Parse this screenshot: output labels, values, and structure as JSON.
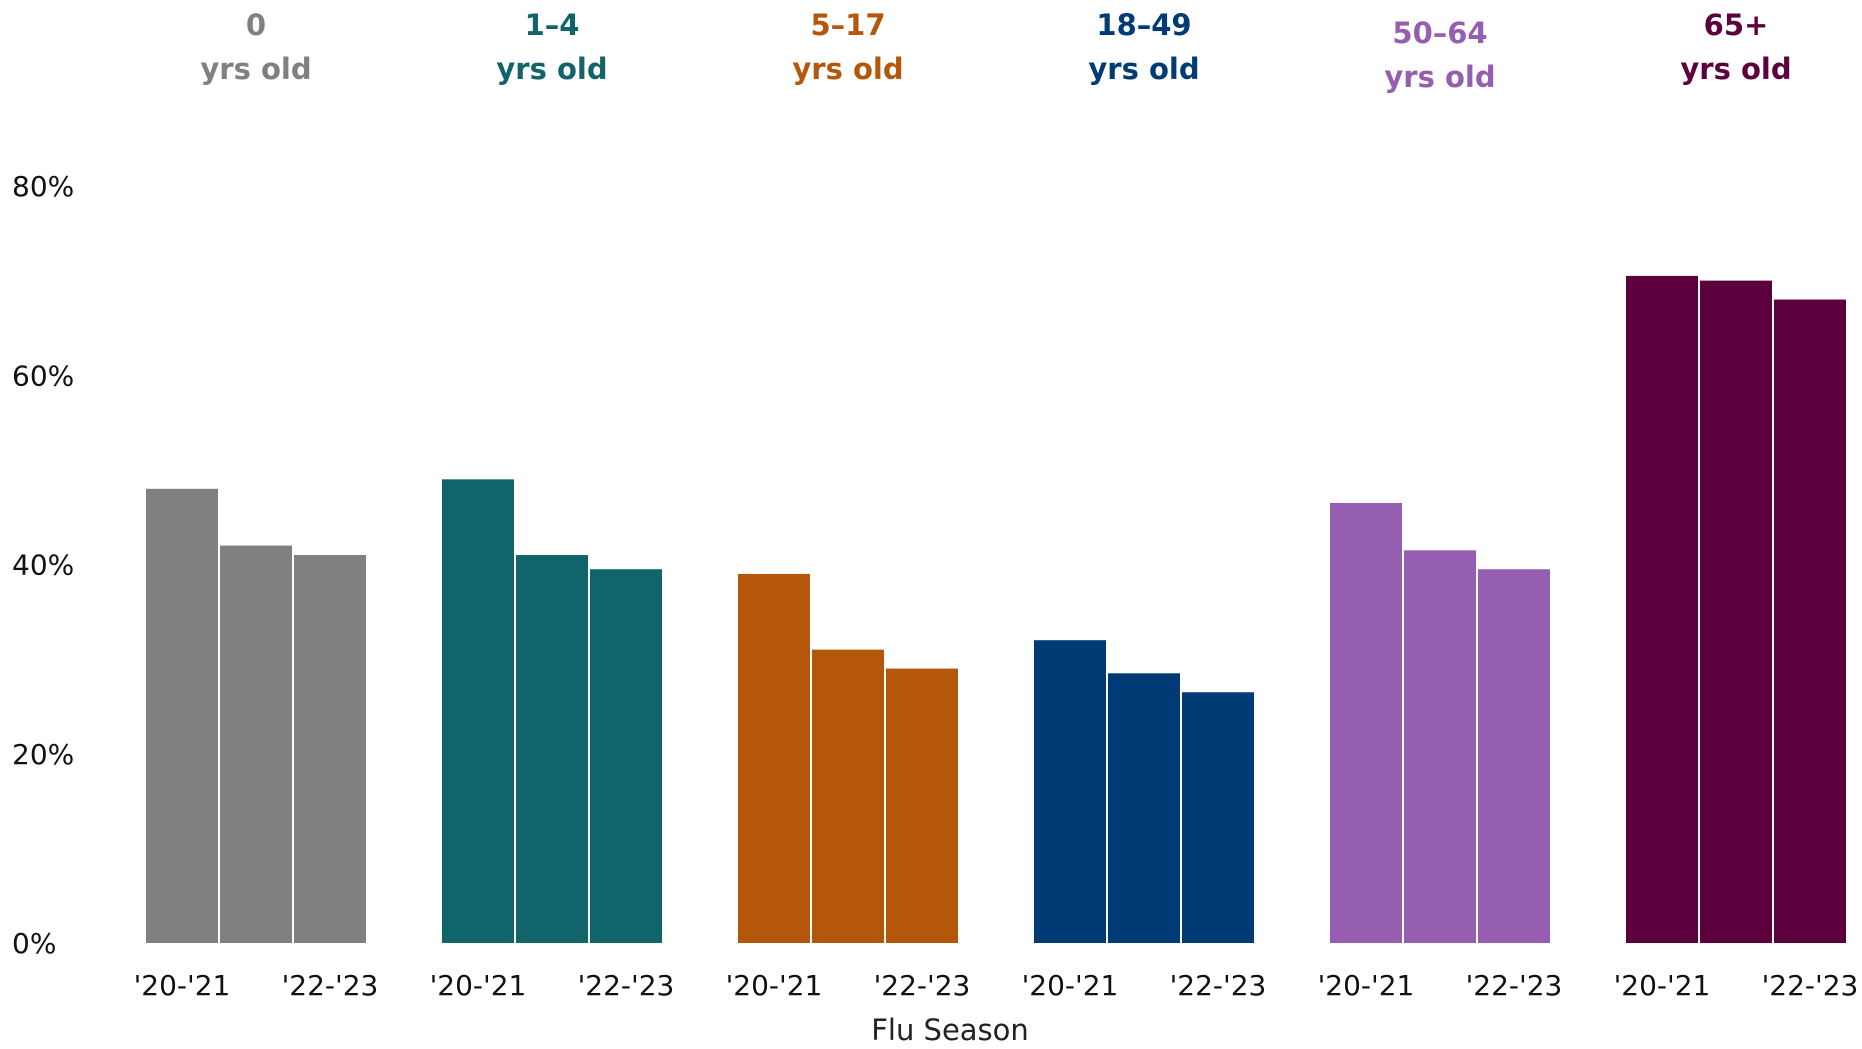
{
  "chart_data": {
    "type": "bar",
    "xlabel": "Flu Season",
    "ylabel": "",
    "ylim": [
      0,
      80
    ],
    "yticks": [
      "0%",
      "20%",
      "40%",
      "60%",
      "80%"
    ],
    "grid": false,
    "series_labels": [
      "'20-'21",
      "'22-'23"
    ],
    "groups": [
      {
        "line1": "0",
        "line2": "yrs old",
        "color": "#808080",
        "values": [
          48,
          42,
          41
        ]
      },
      {
        "line1": "1–4",
        "line2": "yrs old",
        "color": "#12646b",
        "values": [
          49,
          41,
          39.5
        ]
      },
      {
        "line1": "5–17",
        "line2": "yrs old",
        "color": "#b4570b",
        "values": [
          39,
          31,
          29
        ]
      },
      {
        "line1": "18–49",
        "line2": "yrs old",
        "color": "#003b75",
        "values": [
          32,
          28.5,
          26.5
        ]
      },
      {
        "line1": "50–64",
        "line2": "yrs old",
        "color": "#955eb0",
        "values": [
          46.5,
          41.5,
          39.5
        ]
      },
      {
        "line1": "65+",
        "line2": "yrs old",
        "color": "#5c003e",
        "values": [
          70.5,
          70,
          68
        ]
      }
    ]
  }
}
